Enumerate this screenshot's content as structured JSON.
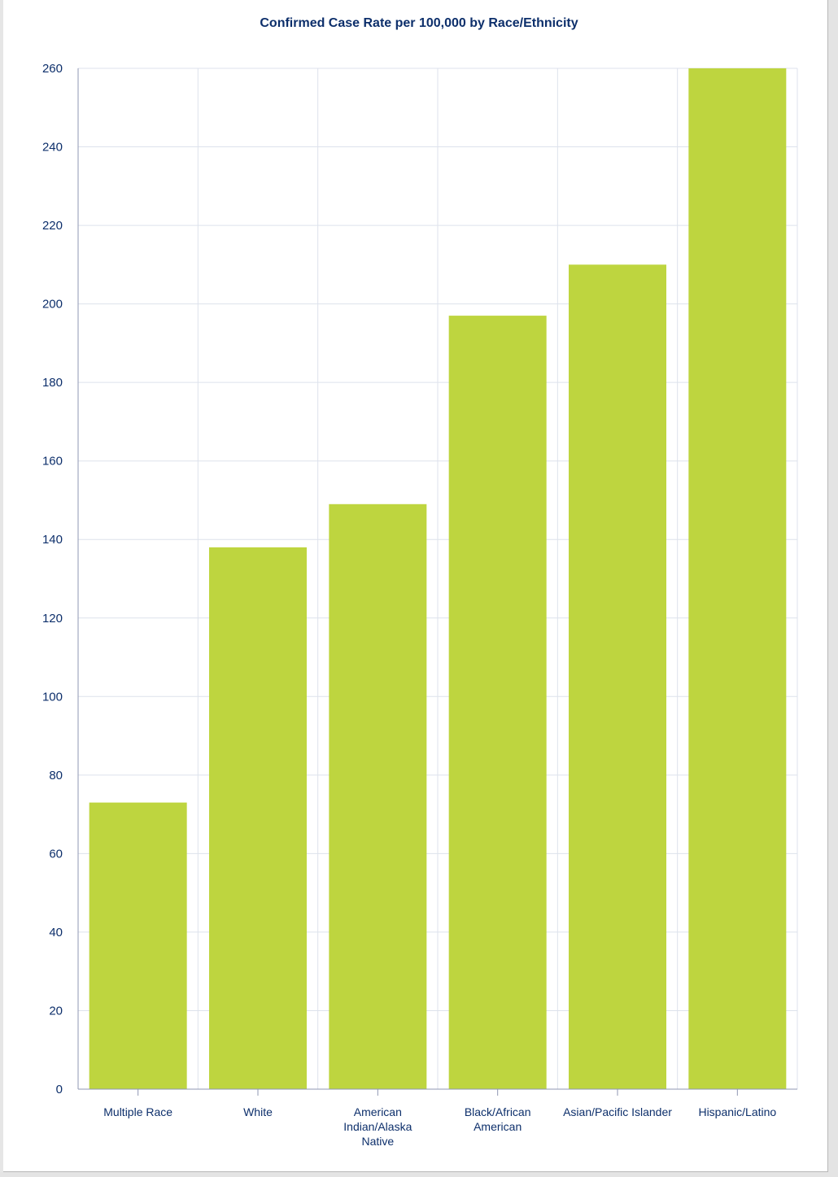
{
  "chart_data": {
    "type": "bar",
    "title": "Confirmed Case Rate per 100,000 by Race/Ethnicity",
    "categories": [
      [
        "Multiple Race"
      ],
      [
        "White"
      ],
      [
        "American",
        "Indian/Alaska",
        "Native"
      ],
      [
        "Black/African",
        "American"
      ],
      [
        "Asian/Pacific Islander"
      ],
      [
        "Hispanic/Latino"
      ]
    ],
    "values": [
      73,
      138,
      149,
      197,
      210,
      260
    ],
    "ylim": [
      0,
      260
    ],
    "yticks": [
      0,
      20,
      40,
      60,
      80,
      100,
      120,
      140,
      160,
      180,
      200,
      220,
      240,
      260
    ],
    "xlabel": "",
    "ylabel": "",
    "grid": true,
    "legend": "none",
    "colors": {
      "bar": "#bed53f",
      "text": "#0d2f6b",
      "grid": "#dde2ec",
      "axis": "#8f97b3"
    }
  }
}
